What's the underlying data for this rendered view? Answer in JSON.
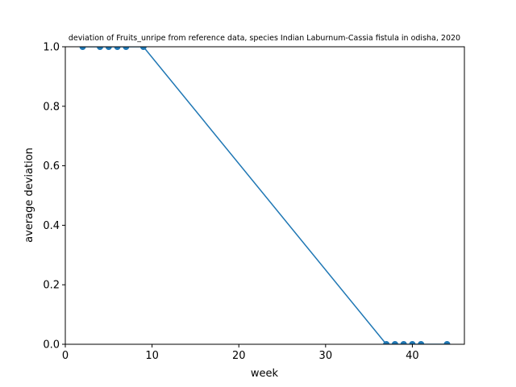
{
  "chart_data": {
    "type": "line",
    "title": "deviation of Fruits_unripe from reference data, species Indian Laburnum-Cassia fistula in odisha, 2020",
    "xlabel": "week",
    "ylabel": "average deviation",
    "xlim": [
      0,
      46
    ],
    "ylim": [
      0,
      1.0
    ],
    "xticks": [
      0,
      10,
      20,
      30,
      40
    ],
    "yticks": [
      0.0,
      0.2,
      0.4,
      0.6,
      0.8,
      1.0
    ],
    "xtick_labels": [
      "0",
      "10",
      "20",
      "30",
      "40"
    ],
    "ytick_labels": [
      "0.0",
      "0.2",
      "0.4",
      "0.6",
      "0.8",
      "1.0"
    ],
    "grid": false,
    "legend": "none",
    "series": [
      {
        "color": "#1f77b4",
        "marker": "circle",
        "x": [
          2,
          4,
          5,
          6,
          7,
          9,
          37,
          38,
          39,
          40,
          41,
          44
        ],
        "y": [
          1.0,
          1.0,
          1.0,
          1.0,
          1.0,
          1.0,
          0.0,
          0.0,
          0.0,
          0.0,
          0.0,
          0.0
        ]
      }
    ]
  }
}
